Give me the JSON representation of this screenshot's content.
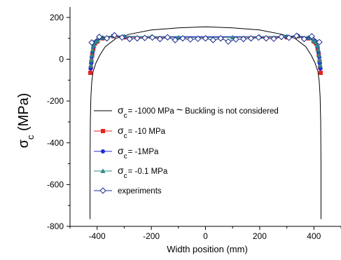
{
  "chart_data": {
    "type": "line",
    "xlabel": "Width position (mm)",
    "ylabel_main": "σ",
    "ylabel_sub": "c",
    "ylabel_unit": " (MPa)",
    "xlim": [
      -500,
      500
    ],
    "ylim": [
      -800,
      250
    ],
    "x_ticks": [
      -400,
      -200,
      0,
      200,
      400
    ],
    "x_tick_labels": [
      "-400",
      "-200",
      "0",
      "200",
      "400"
    ],
    "y_ticks": [
      -800,
      -600,
      -400,
      -200,
      0,
      200
    ],
    "y_tick_labels": [
      "-800",
      "-600",
      "-400",
      "-200",
      "0",
      "200"
    ],
    "grid": false,
    "legend_position": "lower-center",
    "series": [
      {
        "name": "-1000 MPa",
        "legend": {
          "sym": "σ",
          "sub": "c",
          "rest": "= -1000 MPa",
          "tilde": "~",
          "note": "Buckling is not considered"
        },
        "color": "#000000",
        "marker": "none",
        "x": [
          -426,
          -426,
          -425,
          -423,
          -420,
          -415,
          -405,
          -390,
          -370,
          -330,
          -280,
          -200,
          -100,
          0,
          100,
          200,
          280,
          330,
          370,
          390,
          405,
          415,
          420,
          423,
          425,
          426,
          426
        ],
        "y": [
          -765,
          -500,
          -300,
          -180,
          -110,
          -60,
          -20,
          20,
          60,
          100,
          120,
          140,
          150,
          155,
          150,
          140,
          120,
          100,
          60,
          20,
          -20,
          -60,
          -110,
          -180,
          -300,
          -500,
          -765
        ]
      },
      {
        "name": "-10 MPa",
        "legend": {
          "sym": "σ",
          "sub": "c",
          "rest": "= -10 MPa"
        },
        "color": "#e8211e",
        "marker": "square",
        "x": [
          -425,
          -423,
          -421,
          -418,
          -414,
          -408,
          -400,
          -380,
          -340,
          -300,
          300,
          340,
          380,
          400,
          408,
          414,
          418,
          421,
          423,
          425
        ],
        "y": [
          -65,
          -40,
          -10,
          20,
          50,
          75,
          85,
          100,
          110,
          105,
          105,
          110,
          100,
          85,
          75,
          50,
          20,
          -10,
          -40,
          -65
        ]
      },
      {
        "name": "-1MPa",
        "legend": {
          "sym": "σ",
          "sub": "c",
          "rest": "= -1MPa"
        },
        "color": "#1f2ad6",
        "marker": "circle",
        "x": [
          -424,
          -422,
          -420,
          -417,
          -413,
          -407,
          -399,
          -380,
          -340,
          -300,
          300,
          340,
          380,
          399,
          407,
          413,
          417,
          420,
          422,
          424
        ],
        "y": [
          -45,
          -20,
          10,
          35,
          60,
          80,
          88,
          102,
          112,
          108,
          108,
          112,
          102,
          88,
          80,
          60,
          35,
          10,
          -20,
          -45
        ]
      },
      {
        "name": "-0.1 MPa",
        "legend": {
          "sym": "σ",
          "sub": "c",
          "rest": "= -0.1 MPa"
        },
        "color": "#2a8a84",
        "marker": "triangle",
        "x": [
          -423,
          -421,
          -419,
          -416,
          -412,
          -406,
          -398,
          -380,
          -340,
          -300,
          -200,
          -100,
          0,
          100,
          200,
          300,
          340,
          380,
          398,
          406,
          412,
          416,
          419,
          421,
          423
        ],
        "y": [
          -30,
          -5,
          20,
          45,
          65,
          82,
          90,
          104,
          113,
          110,
          108,
          105,
          104,
          105,
          108,
          110,
          113,
          104,
          90,
          82,
          65,
          45,
          20,
          -5,
          -30
        ]
      },
      {
        "name": "experiments",
        "legend": {
          "sym": "",
          "sub": "",
          "rest": "experiments"
        },
        "color": "#1a2a8c",
        "marker": "diamond-open",
        "x": [
          -420,
          -392,
          -364,
          -336,
          -308,
          -280,
          -252,
          -224,
          -196,
          -168,
          -140,
          -112,
          -84,
          -56,
          -28,
          0,
          28,
          56,
          84,
          112,
          140,
          168,
          196,
          224,
          252,
          280,
          308,
          336,
          364,
          392,
          420
        ],
        "y": [
          80,
          107,
          100,
          115,
          104,
          97,
          100,
          102,
          104,
          97,
          105,
          92,
          100,
          95,
          98,
          100,
          92,
          100,
          85,
          95,
          97,
          100,
          104,
          100,
          98,
          107,
          103,
          112,
          97,
          110,
          82
        ]
      }
    ]
  }
}
